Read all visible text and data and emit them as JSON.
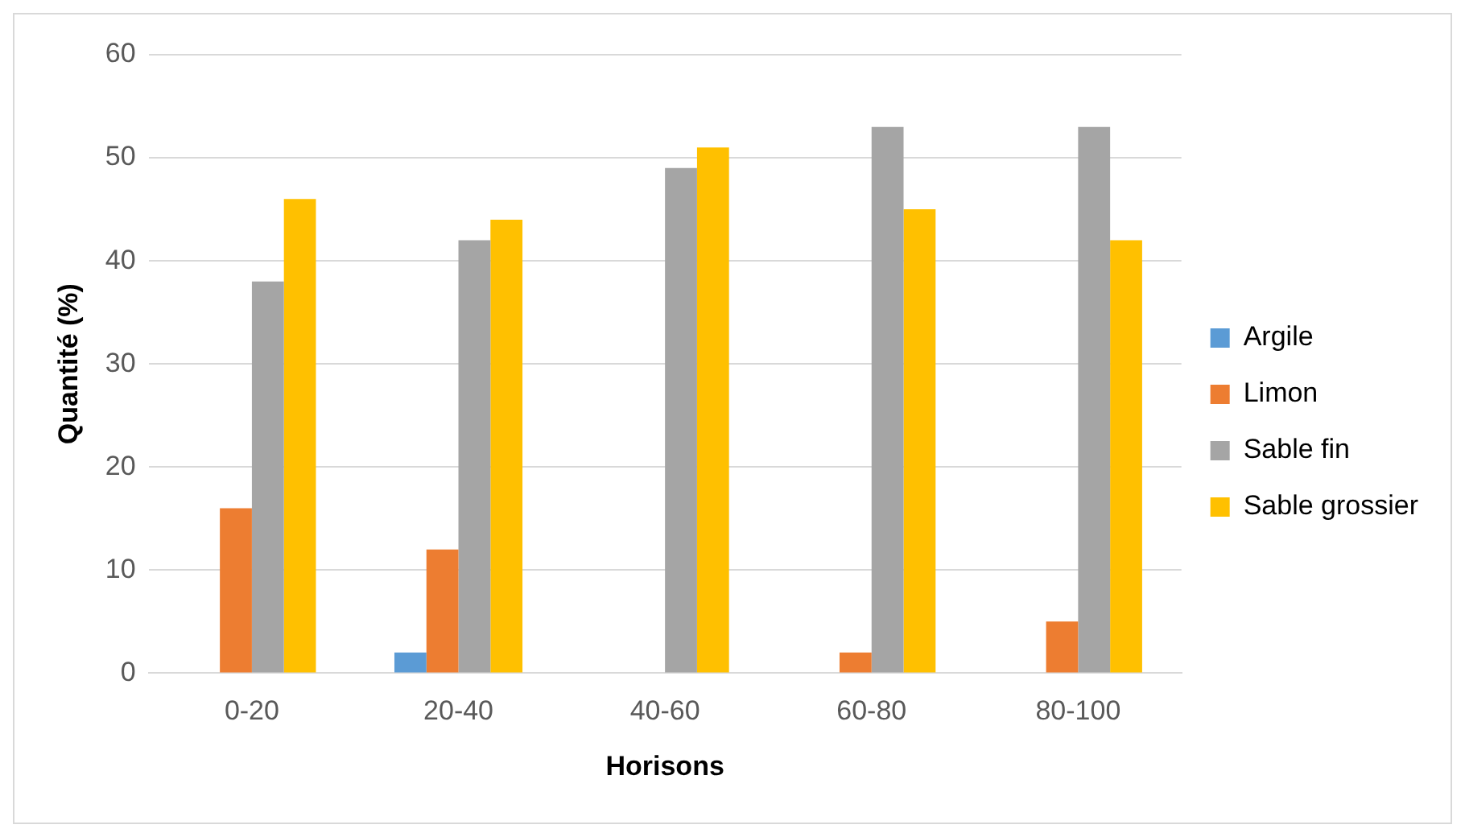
{
  "chart_data": {
    "type": "bar",
    "xlabel": "Horisons",
    "ylabel": "Quantité (%)",
    "categories": [
      "0-20",
      "20-40",
      "40-60",
      "60-80",
      "80-100"
    ],
    "series": [
      {
        "name": "Argile",
        "color": "#5b9bd5",
        "values": [
          0,
          2,
          0,
          0,
          0
        ]
      },
      {
        "name": "Limon",
        "color": "#ed7d31",
        "values": [
          16,
          12,
          0,
          2,
          5
        ]
      },
      {
        "name": "Sable fin",
        "color": "#a5a5a5",
        "values": [
          38,
          42,
          49,
          53,
          53
        ]
      },
      {
        "name": "Sable grossier",
        "color": "#ffc000",
        "values": [
          46,
          44,
          51,
          45,
          42
        ]
      }
    ],
    "ylim": [
      0,
      60
    ],
    "yticks": [
      0,
      10,
      20,
      30,
      40,
      50,
      60
    ],
    "grid": "y",
    "legend": "right"
  }
}
